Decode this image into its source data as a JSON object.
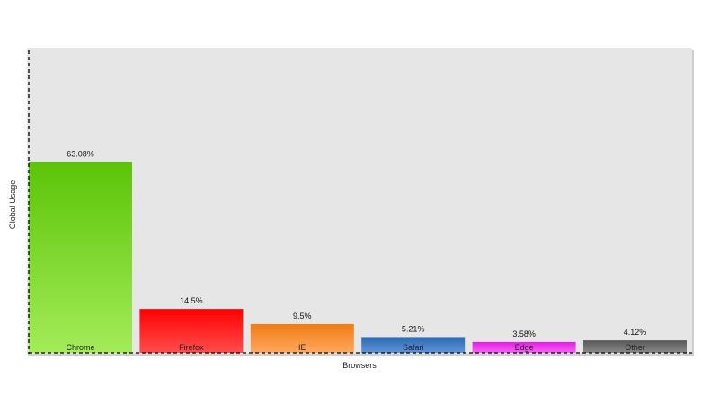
{
  "chart_data": {
    "type": "bar",
    "title": "",
    "xlabel": "Browsers",
    "ylabel": "Global Usage",
    "categories": [
      "Chrome",
      "Firefox",
      "IE",
      "Safari",
      "Edge",
      "Other"
    ],
    "values": [
      63.08,
      14.5,
      9.5,
      5.21,
      3.58,
      4.12
    ],
    "data_labels": [
      "63.08%",
      "14.5%",
      "9.5%",
      "5.21%",
      "3.58%",
      "4.12%"
    ],
    "ylim": [
      0,
      100
    ],
    "grid": false,
    "legend": "none",
    "plot_background": "#e6e6e6",
    "colors": [
      {
        "top": "#5cc407",
        "bottom": "#a3ec59"
      },
      {
        "top": "#ff0000",
        "bottom": "#ff4d4d"
      },
      {
        "top": "#f07c12",
        "bottom": "#ffa862"
      },
      {
        "top": "#2c68b1",
        "bottom": "#5f96d8"
      },
      {
        "top": "#e619e6",
        "bottom": "#f566f5"
      },
      {
        "top": "#585858",
        "bottom": "#8a8a8a"
      }
    ]
  }
}
